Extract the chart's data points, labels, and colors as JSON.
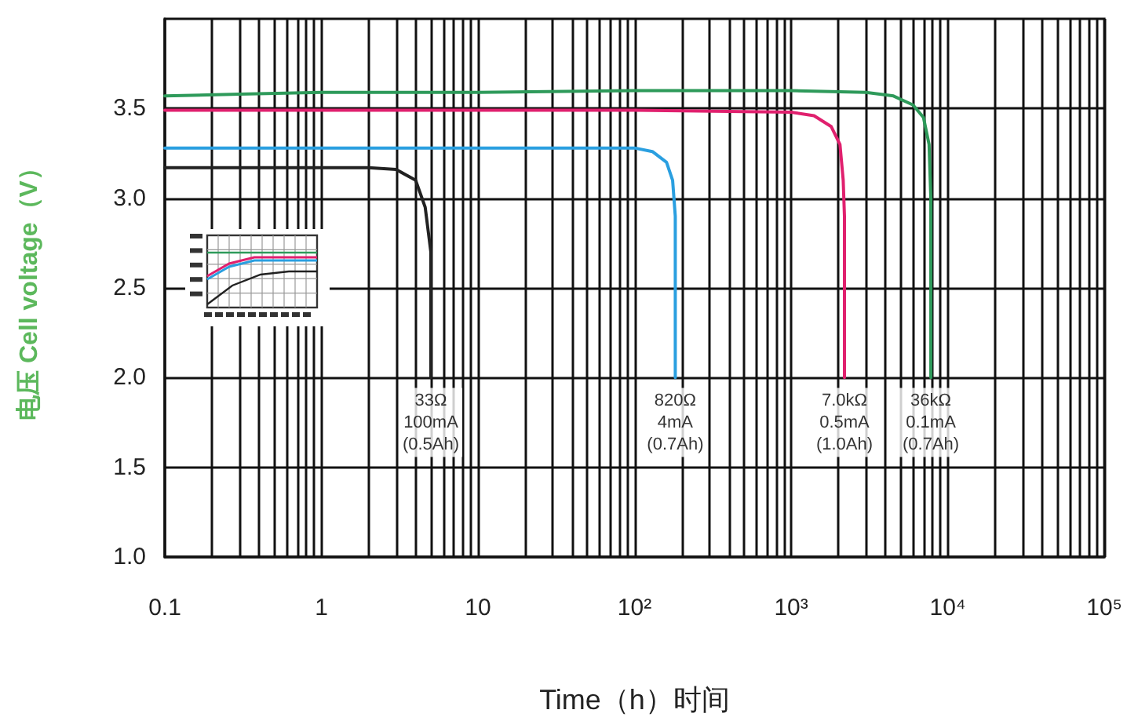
{
  "chart_data": {
    "type": "line",
    "xlabel": "Time（h）时间",
    "ylabel": "电压 Cell voltage（V）",
    "log": "x",
    "grid": true,
    "line_style": "solid",
    "xlim": [
      0.1,
      100000
    ],
    "ylim": [
      1,
      4
    ],
    "xticks": [
      0.1,
      {
        "value": 0.2,
        "label": null
      },
      {
        "value": 0.3,
        "label": null
      },
      {
        "value": 0.4,
        "label": null
      },
      {
        "value": 0.5,
        "label": null
      },
      {
        "value": 0.6,
        "label": null
      },
      {
        "value": 0.7,
        "label": null
      },
      {
        "value": 0.8,
        "label": null
      },
      {
        "value": 0.9,
        "label": null
      },
      1,
      {
        "value": 2,
        "label": null
      },
      {
        "value": 3,
        "label": null
      },
      {
        "value": 4,
        "label": null
      },
      {
        "value": 5,
        "label": null
      },
      {
        "value": 6,
        "label": null
      },
      {
        "value": 7,
        "label": null
      },
      {
        "value": 8,
        "label": null
      },
      {
        "value": 9,
        "label": null
      },
      10,
      {
        "value": 20,
        "label": null
      },
      {
        "value": 30,
        "label": null
      },
      {
        "value": 40,
        "label": null
      },
      {
        "value": 50,
        "label": null
      },
      {
        "value": 60,
        "label": null
      },
      {
        "value": 70,
        "label": null
      },
      {
        "value": 80,
        "label": null
      },
      {
        "value": 90,
        "label": null
      },
      {
        "value": 100,
        "label": "10²"
      },
      {
        "value": 200,
        "label": null
      },
      {
        "value": 300,
        "label": null
      },
      {
        "value": 400,
        "label": null
      },
      {
        "value": 500,
        "label": null
      },
      {
        "value": 600,
        "label": null
      },
      {
        "value": 700,
        "label": null
      },
      {
        "value": 800,
        "label": null
      },
      {
        "value": 900,
        "label": null
      },
      {
        "value": 1000,
        "label": "10³"
      },
      {
        "value": 2000,
        "label": null
      },
      {
        "value": 3000,
        "label": null
      },
      {
        "value": 4000,
        "label": null
      },
      {
        "value": 5000,
        "label": null
      },
      {
        "value": 6000,
        "label": null
      },
      {
        "value": 7000,
        "label": null
      },
      {
        "value": 8000,
        "label": null
      },
      {
        "value": 9000,
        "label": null
      },
      {
        "value": 10000,
        "label": "10⁴"
      },
      {
        "value": 20000,
        "label": null
      },
      {
        "value": 30000,
        "label": null
      },
      {
        "value": 40000,
        "label": null
      },
      {
        "value": 50000,
        "label": null
      },
      {
        "value": 60000,
        "label": null
      },
      {
        "value": 70000,
        "label": null
      },
      {
        "value": 80000,
        "label": null
      },
      {
        "value": 90000,
        "label": null
      },
      {
        "value": 100000,
        "label": "10⁵"
      }
    ],
    "yticks": [
      {
        "value": 1,
        "label": "1.0"
      },
      1.5,
      {
        "value": 2,
        "label": "2.0"
      },
      2.5,
      {
        "value": 3,
        "label": "3.0"
      },
      3.5
    ],
    "series": [
      {
        "color": "#222222",
        "x": [
          0.1,
          1,
          2,
          3,
          4,
          4.6,
          5,
          5
        ],
        "values": [
          3.17,
          3.17,
          3.17,
          3.16,
          3.1,
          2.95,
          2.7,
          2.0
        ]
      },
      {
        "color": "#2a9fe0",
        "x": [
          0.1,
          1,
          10,
          100,
          130,
          160,
          175,
          182,
          182
        ],
        "values": [
          3.28,
          3.28,
          3.28,
          3.28,
          3.26,
          3.2,
          3.1,
          2.9,
          2.0
        ]
      },
      {
        "color": "#e0206e",
        "x": [
          0.1,
          1,
          10,
          100,
          1000,
          1400,
          1800,
          2050,
          2150,
          2190,
          2190
        ],
        "values": [
          3.49,
          3.49,
          3.49,
          3.49,
          3.48,
          3.46,
          3.4,
          3.3,
          3.1,
          2.9,
          2.0
        ]
      },
      {
        "color": "#2e9a5a",
        "x": [
          0.1,
          0.3,
          1,
          10,
          100,
          1000,
          3000,
          4500,
          6000,
          7000,
          7600,
          7800,
          7800
        ],
        "values": [
          3.57,
          3.58,
          3.59,
          3.59,
          3.6,
          3.6,
          3.59,
          3.57,
          3.52,
          3.45,
          3.3,
          3.0,
          2.0
        ]
      }
    ],
    "annotations": [
      {
        "text": "33Ω\n100mA\n(0.5Ah)",
        "x": 5,
        "y": 1.75
      },
      {
        "text": "820Ω\n4mA\n(0.7Ah)",
        "x": 182,
        "y": 1.75
      },
      {
        "text": "7.0kΩ\n0.5mA\n(1.0Ah)",
        "x": 2190,
        "y": 1.75
      },
      {
        "text": "36kΩ\n0.1mA\n(0.7Ah)",
        "x": 7800,
        "y": 1.75
      }
    ]
  }
}
